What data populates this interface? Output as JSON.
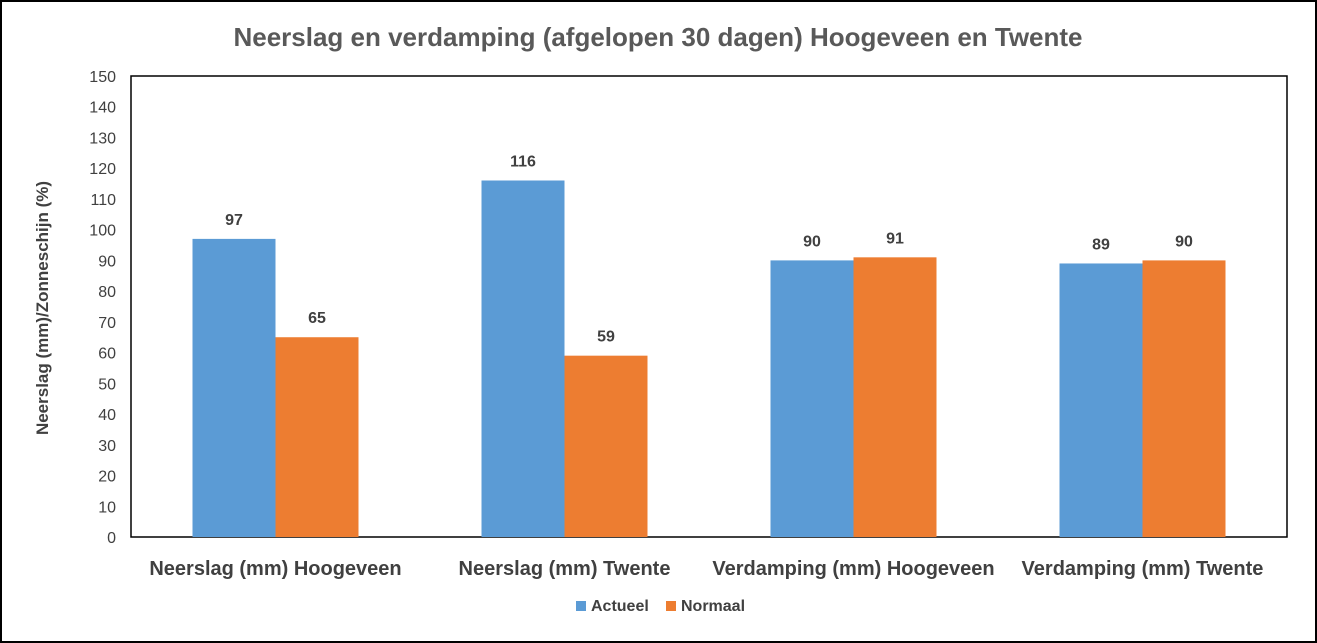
{
  "chart_data": {
    "type": "bar",
    "title": "Neerslag en verdamping (afgelopen 30 dagen) Hoogeveen en Twente",
    "ylabel": "Neerslag (mm)/Zonneschijn (%)",
    "xlabel": "",
    "ylim": [
      0,
      150
    ],
    "ytick_step": 10,
    "categories": [
      "Neerslag (mm) Hoogeveen",
      "Neerslag (mm) Twente",
      "Verdamping (mm) Hoogeveen",
      "Verdamping (mm) Twente"
    ],
    "series": [
      {
        "name": "Actueel",
        "color": "#5B9BD5",
        "values": [
          97,
          116,
          90,
          89
        ]
      },
      {
        "name": "Normaal",
        "color": "#ED7D31",
        "values": [
          65,
          59,
          91,
          90
        ]
      }
    ],
    "grid": false,
    "legend_position": "bottom",
    "data_labels": true
  }
}
